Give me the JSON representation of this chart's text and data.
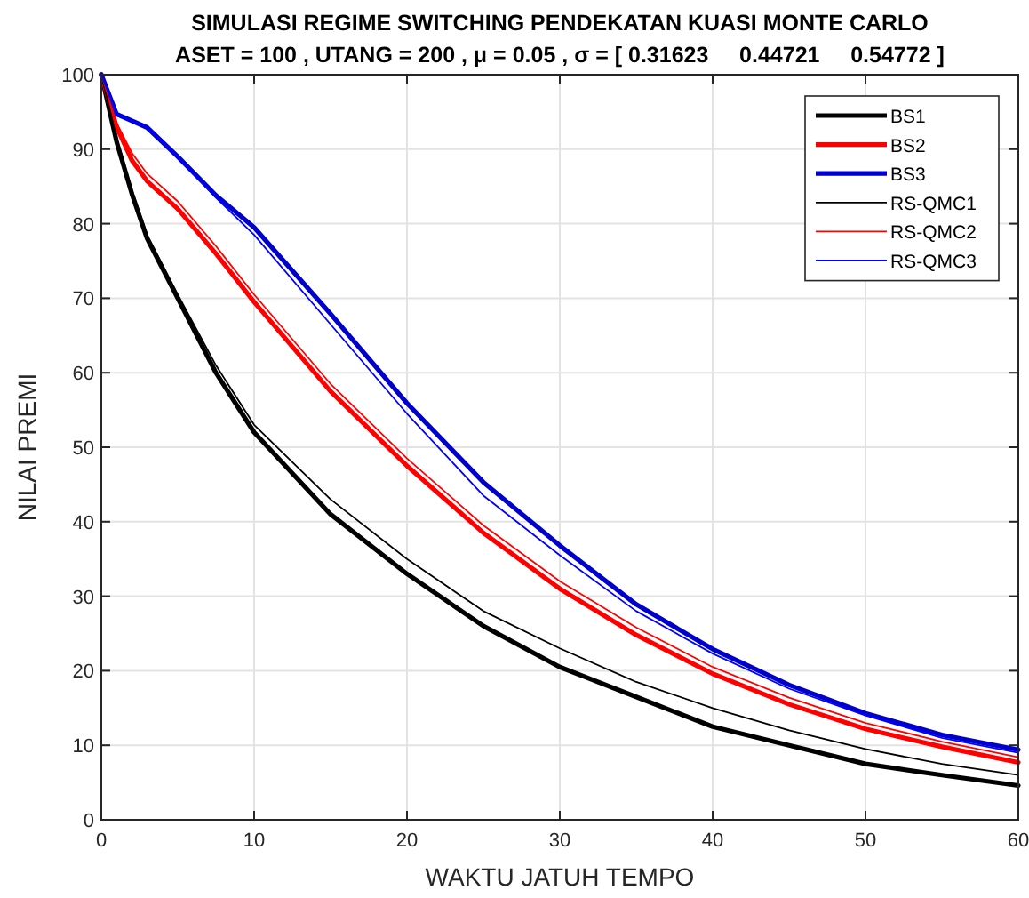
{
  "chart_data": {
    "type": "line",
    "title": "SIMULASI REGIME SWITCHING PENDEKATAN KUASI MONTE CARLO",
    "subtitle": "ASET = 100 , UTANG = 200 , μ = 0.05 , σ = [ 0.31623     0.44721     0.54772 ]",
    "xlabel": "WAKTU JATUH TEMPO",
    "ylabel": "NILAI PREMI",
    "x": [
      0,
      1,
      2,
      3,
      5,
      7.5,
      10,
      15,
      20,
      25,
      30,
      35,
      40,
      45,
      50,
      55,
      60
    ],
    "xlim": [
      0,
      60
    ],
    "ylim": [
      0,
      100
    ],
    "xticks": [
      0,
      10,
      20,
      30,
      40,
      50,
      60
    ],
    "yticks": [
      0,
      10,
      20,
      30,
      40,
      50,
      60,
      70,
      80,
      90,
      100
    ],
    "grid": true,
    "legend": "top right",
    "marker": "none",
    "line_style": "solid",
    "series": [
      {
        "name": "BS1",
        "color": "#000000",
        "values": [
          100,
          91,
          84,
          78,
          70,
          60,
          52,
          41,
          33,
          26,
          20.5,
          16.5,
          12.5,
          10,
          7.5,
          6,
          4.6
        ]
      },
      {
        "name": "BS2",
        "color": "#ff0000",
        "values": [
          100,
          93,
          88.5,
          85.7,
          82,
          76,
          69.5,
          57.5,
          47.5,
          38.5,
          31,
          24.8,
          19.6,
          15.5,
          12.2,
          9.8,
          7.7
        ]
      },
      {
        "name": "BS3",
        "color": "#0000cc",
        "values": [
          100,
          94.7,
          93.8,
          92.9,
          89,
          83.8,
          79.5,
          67.9,
          55.9,
          45.3,
          36.8,
          28.9,
          22.9,
          18.1,
          14.3,
          11.4,
          9.4
        ]
      },
      {
        "name": "RS-QMC1",
        "color": "#000000",
        "values": [
          100,
          91.5,
          84.5,
          78.5,
          70.5,
          61,
          53,
          43,
          35,
          28,
          23,
          18.5,
          15,
          12,
          9.5,
          7.5,
          6
        ]
      },
      {
        "name": "RS-QMC2",
        "color": "#ff0000",
        "values": [
          100,
          93.5,
          89.5,
          86.7,
          83,
          77,
          70.5,
          58.5,
          48.5,
          39.5,
          32,
          25.8,
          20.5,
          16.4,
          13,
          10.5,
          8.4
        ]
      },
      {
        "name": "RS-QMC3",
        "color": "#0000ff",
        "values": [
          100,
          94.7,
          93.8,
          92.9,
          89,
          83.5,
          78.5,
          66.5,
          54.5,
          43.5,
          35.5,
          28,
          22.3,
          17.6,
          14,
          11,
          9
        ]
      }
    ]
  }
}
